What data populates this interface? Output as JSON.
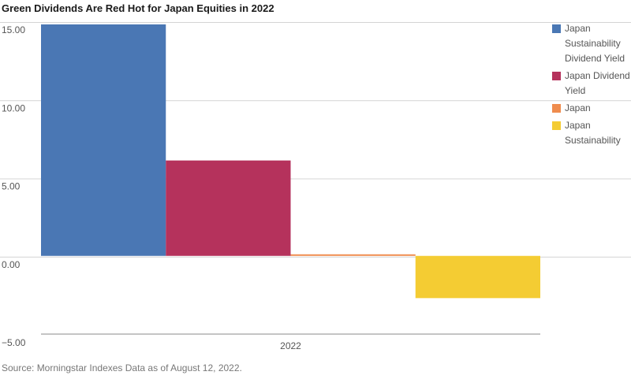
{
  "title": "Green Dividends Are Red Hot for Japan Equities in 2022",
  "source": "Source: Morningstar Indexes  Data as of August 12, 2022.",
  "chart_data": {
    "type": "bar",
    "categories": [
      "2022"
    ],
    "series": [
      {
        "name": "Japan Sustainability Dividend Yield",
        "values": [
          14.8
        ],
        "color": "#4a77b4"
      },
      {
        "name": "Japan Dividend Yield",
        "values": [
          6.1
        ],
        "color": "#b5325c"
      },
      {
        "name": "Japan",
        "values": [
          0.1
        ],
        "color": "#ef8c4e"
      },
      {
        "name": "Japan Sustainability",
        "values": [
          -2.7
        ],
        "color": "#f4cc33"
      }
    ],
    "ylim": [
      -5,
      15
    ],
    "yticks": [
      "15.00",
      "10.00",
      "5.00",
      "0.00",
      "−5.00"
    ],
    "grid": true,
    "legend": "right"
  }
}
